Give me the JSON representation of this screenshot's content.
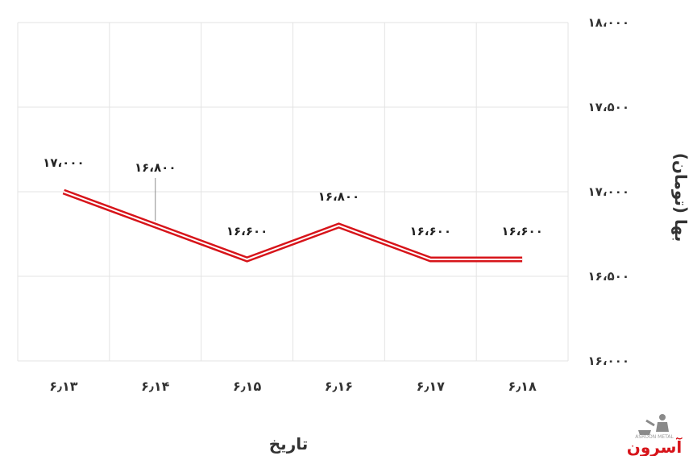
{
  "chart_data": {
    "type": "line",
    "categories": [
      "۶٫۱۳",
      "۶٫۱۴",
      "۶٫۱۵",
      "۶٫۱۶",
      "۶٫۱۷",
      "۶٫۱۸"
    ],
    "series": [
      {
        "values": [
          17000,
          16800,
          16600,
          16800,
          16600,
          16600
        ],
        "color": "#d7141a"
      }
    ],
    "data_labels": [
      "۱۷،۰۰۰",
      "۱۶،۸۰۰",
      "۱۶،۶۰۰",
      "۱۶،۸۰۰",
      "۱۶،۶۰۰",
      "۱۶،۶۰۰"
    ],
    "y_ticks": [
      {
        "value": 18000,
        "label": "۱۸،۰۰۰"
      },
      {
        "value": 17500,
        "label": "۱۷،۵۰۰"
      },
      {
        "value": 17000,
        "label": "۱۷،۰۰۰"
      },
      {
        "value": 16500,
        "label": "۱۶،۵۰۰"
      },
      {
        "value": 16000,
        "label": "۱۶،۰۰۰"
      }
    ],
    "ylim": [
      16000,
      18000
    ],
    "xlabel": "تاریخ",
    "ylabel": "بها (تومان)",
    "grid": true,
    "y_axis_side": "right"
  },
  "watermark": {
    "text": "آسرون",
    "subtext": "ASROON METAL",
    "color": "#d7141a"
  }
}
